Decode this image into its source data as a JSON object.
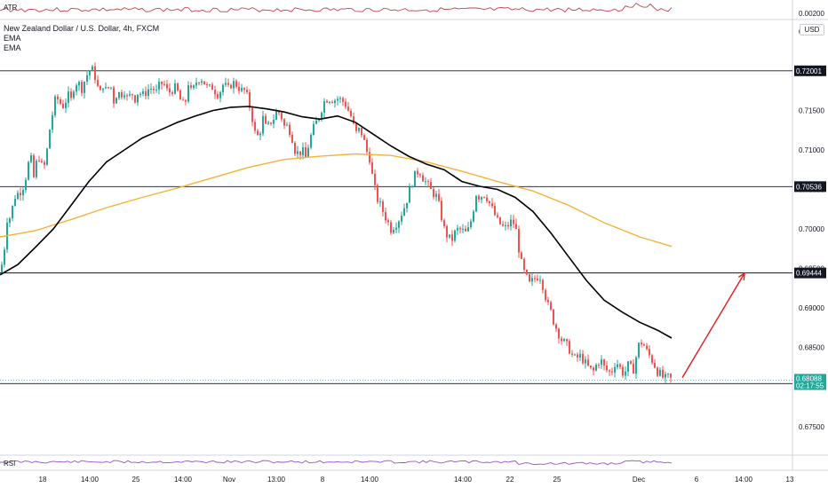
{
  "header": {
    "symbol_line": "New Zealand Dollar / U.S. Dollar, 4h, FXCM",
    "indicators": [
      "EMA",
      "EMA"
    ],
    "currency": "USD"
  },
  "panes": {
    "atr": {
      "label": "ATR",
      "value_label": "0.00200"
    },
    "rsi": {
      "label": "RSI"
    }
  },
  "colors": {
    "up": "#26a69a",
    "down": "#ef5350",
    "ema_fast": "#000000",
    "ema_slow": "#f5b23b",
    "arrow": "#e8191c",
    "atr_line": "#c2424b",
    "rsi_line": "#9b4fc7",
    "current_tag": "#26a69a",
    "level_tag": "#131722"
  },
  "chart_data": {
    "type": "candlestick",
    "title": "New Zealand Dollar / U.S. Dollar, 4h, FXCM",
    "ylim": [
      0.6715,
      0.7265
    ],
    "y_ticks": [
      "0.72500",
      "0.72000",
      "0.71500",
      "0.71000",
      "0.70500",
      "0.70000",
      "0.69500",
      "0.69000",
      "0.68500",
      "0.68000",
      "0.67500"
    ],
    "x_ticks": [
      "18",
      "14:00",
      "25",
      "14:00",
      "Nov",
      "13:00",
      "8",
      "14:00",
      "14:00",
      "22",
      "25",
      "Dec",
      "6",
      "14:00",
      "13"
    ],
    "horizontal_levels": [
      0.72001,
      0.70536,
      0.69444,
      0.68044
    ],
    "level_labels": [
      "0.72001",
      "0.70536",
      "0.69444",
      "0.68044"
    ],
    "current_price": "0.68088",
    "countdown": "02:17:55",
    "close_path": [
      [
        0,
        0.6945
      ],
      [
        4,
        0.6965
      ],
      [
        8,
        0.7013
      ],
      [
        12,
        0.7015
      ],
      [
        16,
        0.704
      ],
      [
        20,
        0.7045
      ],
      [
        25,
        0.705
      ],
      [
        30,
        0.707
      ],
      [
        34,
        0.7095
      ],
      [
        38,
        0.7065
      ],
      [
        43,
        0.7095
      ],
      [
        47,
        0.708
      ],
      [
        51,
        0.708
      ],
      [
        55,
        0.712
      ],
      [
        59,
        0.7145
      ],
      [
        63,
        0.7168
      ],
      [
        67,
        0.716
      ],
      [
        72,
        0.7155
      ],
      [
        76,
        0.717
      ],
      [
        80,
        0.7163
      ],
      [
        84,
        0.7185
      ],
      [
        88,
        0.7185
      ],
      [
        92,
        0.7178
      ],
      [
        96,
        0.719
      ],
      [
        100,
        0.72
      ],
      [
        104,
        0.7201
      ],
      [
        108,
        0.719
      ],
      [
        112,
        0.7168
      ],
      [
        116,
        0.7183
      ],
      [
        120,
        0.7173
      ],
      [
        124,
        0.7185
      ],
      [
        128,
        0.7162
      ],
      [
        132,
        0.7173
      ],
      [
        136,
        0.717
      ],
      [
        140,
        0.7175
      ],
      [
        144,
        0.7163
      ],
      [
        148,
        0.7173
      ],
      [
        152,
        0.7165
      ],
      [
        156,
        0.7175
      ],
      [
        160,
        0.7168
      ],
      [
        164,
        0.7173
      ],
      [
        168,
        0.7178
      ],
      [
        172,
        0.7178
      ],
      [
        176,
        0.7173
      ],
      [
        180,
        0.7183
      ],
      [
        184,
        0.7185
      ],
      [
        188,
        0.7175
      ],
      [
        192,
        0.7173
      ],
      [
        196,
        0.718
      ],
      [
        200,
        0.7173
      ],
      [
        204,
        0.716
      ],
      [
        208,
        0.7155
      ],
      [
        212,
        0.7185
      ],
      [
        216,
        0.717
      ],
      [
        220,
        0.7185
      ],
      [
        224,
        0.719
      ],
      [
        228,
        0.719
      ],
      [
        232,
        0.718
      ],
      [
        236,
        0.7178
      ],
      [
        240,
        0.718
      ],
      [
        244,
        0.717
      ],
      [
        248,
        0.7175
      ],
      [
        252,
        0.7185
      ],
      [
        256,
        0.7175
      ],
      [
        260,
        0.7183
      ],
      [
        264,
        0.7185
      ],
      [
        268,
        0.718
      ],
      [
        272,
        0.7175
      ],
      [
        276,
        0.7175
      ],
      [
        280,
        0.716
      ],
      [
        284,
        0.714
      ],
      [
        288,
        0.7115
      ],
      [
        292,
        0.712
      ],
      [
        296,
        0.714
      ],
      [
        300,
        0.7125
      ],
      [
        304,
        0.7135
      ],
      [
        308,
        0.714
      ],
      [
        312,
        0.715
      ],
      [
        316,
        0.7145
      ],
      [
        320,
        0.713
      ],
      [
        324,
        0.713
      ],
      [
        328,
        0.712
      ],
      [
        332,
        0.71
      ],
      [
        336,
        0.7095
      ],
      [
        340,
        0.71
      ],
      [
        344,
        0.709
      ],
      [
        348,
        0.711
      ],
      [
        352,
        0.7125
      ],
      [
        356,
        0.7135
      ],
      [
        360,
        0.7145
      ],
      [
        364,
        0.716
      ],
      [
        368,
        0.7165
      ],
      [
        372,
        0.7165
      ],
      [
        376,
        0.7163
      ],
      [
        380,
        0.7165
      ],
      [
        384,
        0.7163
      ],
      [
        388,
        0.716
      ],
      [
        392,
        0.715
      ],
      [
        396,
        0.714
      ],
      [
        400,
        0.712
      ],
      [
        404,
        0.7125
      ],
      [
        408,
        0.712
      ],
      [
        412,
        0.71
      ],
      [
        416,
        0.709
      ],
      [
        420,
        0.706
      ],
      [
        424,
        0.704
      ],
      [
        428,
        0.703
      ],
      [
        432,
        0.702
      ],
      [
        436,
        0.701
      ],
      [
        440,
        0.7
      ],
      [
        444,
        0.7005
      ],
      [
        448,
        0.701
      ],
      [
        452,
        0.702
      ],
      [
        456,
        0.703
      ],
      [
        460,
        0.7045
      ],
      [
        464,
        0.706
      ],
      [
        468,
        0.707
      ],
      [
        472,
        0.7075
      ],
      [
        476,
        0.7065
      ],
      [
        480,
        0.7058
      ],
      [
        484,
        0.705
      ],
      [
        488,
        0.7045
      ],
      [
        492,
        0.704
      ],
      [
        496,
        0.702
      ],
      [
        500,
        0.7
      ],
      [
        504,
        0.699
      ],
      [
        508,
        0.6985
      ],
      [
        512,
        0.6995
      ],
      [
        516,
        0.7
      ],
      [
        520,
        0.6998
      ],
      [
        524,
        0.6995
      ],
      [
        528,
        0.7
      ],
      [
        532,
        0.702
      ],
      [
        536,
        0.7045
      ],
      [
        540,
        0.704
      ],
      [
        544,
        0.7045
      ],
      [
        548,
        0.704
      ],
      [
        552,
        0.703
      ],
      [
        556,
        0.702
      ],
      [
        560,
        0.701
      ],
      [
        564,
        0.7005
      ],
      [
        568,
        0.7
      ],
      [
        572,
        0.7005
      ],
      [
        576,
        0.701
      ],
      [
        580,
        0.7005
      ],
      [
        584,
        0.6975
      ],
      [
        588,
        0.695
      ],
      [
        592,
        0.694
      ],
      [
        596,
        0.693
      ],
      [
        600,
        0.6935
      ],
      [
        604,
        0.694
      ],
      [
        608,
        0.694
      ],
      [
        612,
        0.6925
      ],
      [
        616,
        0.6905
      ],
      [
        620,
        0.6895
      ],
      [
        624,
        0.688
      ],
      [
        628,
        0.687
      ],
      [
        632,
        0.686
      ],
      [
        636,
        0.6855
      ],
      [
        640,
        0.685
      ],
      [
        644,
        0.684
      ],
      [
        648,
        0.6835
      ],
      [
        652,
        0.684
      ],
      [
        656,
        0.6835
      ],
      [
        660,
        0.6828
      ],
      [
        664,
        0.6822
      ],
      [
        668,
        0.682
      ],
      [
        672,
        0.683
      ],
      [
        676,
        0.6835
      ],
      [
        680,
        0.6825
      ],
      [
        684,
        0.682
      ],
      [
        688,
        0.6818
      ],
      [
        692,
        0.683
      ],
      [
        696,
        0.683
      ],
      [
        700,
        0.6818
      ],
      [
        704,
        0.682
      ],
      [
        708,
        0.683
      ],
      [
        712,
        0.6818
      ],
      [
        716,
        0.6838
      ],
      [
        720,
        0.6858
      ],
      [
        724,
        0.6855
      ],
      [
        728,
        0.6845
      ],
      [
        732,
        0.6838
      ],
      [
        736,
        0.683
      ],
      [
        740,
        0.682
      ],
      [
        744,
        0.6815
      ],
      [
        748,
        0.681
      ],
      [
        752,
        0.6812
      ],
      [
        756,
        0.6809
      ]
    ],
    "ema_fast": [
      [
        0,
        0.6942
      ],
      [
        20,
        0.6955
      ],
      [
        40,
        0.6977
      ],
      [
        60,
        0.7
      ],
      [
        80,
        0.703
      ],
      [
        100,
        0.706
      ],
      [
        120,
        0.7085
      ],
      [
        140,
        0.71
      ],
      [
        160,
        0.7115
      ],
      [
        180,
        0.7125
      ],
      [
        200,
        0.7135
      ],
      [
        220,
        0.7143
      ],
      [
        240,
        0.715
      ],
      [
        260,
        0.7154
      ],
      [
        280,
        0.7155
      ],
      [
        300,
        0.7152
      ],
      [
        320,
        0.7148
      ],
      [
        340,
        0.7142
      ],
      [
        360,
        0.7139
      ],
      [
        380,
        0.7143
      ],
      [
        400,
        0.7135
      ],
      [
        420,
        0.712
      ],
      [
        440,
        0.7105
      ],
      [
        460,
        0.7092
      ],
      [
        480,
        0.7082
      ],
      [
        500,
        0.7075
      ],
      [
        520,
        0.706
      ],
      [
        540,
        0.7054
      ],
      [
        560,
        0.705
      ],
      [
        580,
        0.704
      ],
      [
        600,
        0.7022
      ],
      [
        620,
        0.6995
      ],
      [
        640,
        0.6965
      ],
      [
        660,
        0.6935
      ],
      [
        680,
        0.691
      ],
      [
        700,
        0.6895
      ],
      [
        720,
        0.6882
      ],
      [
        740,
        0.6872
      ],
      [
        756,
        0.6862
      ]
    ],
    "ema_slow": [
      [
        0,
        0.699
      ],
      [
        40,
        0.6998
      ],
      [
        80,
        0.7012
      ],
      [
        120,
        0.7027
      ],
      [
        160,
        0.704
      ],
      [
        200,
        0.7052
      ],
      [
        240,
        0.7065
      ],
      [
        280,
        0.7078
      ],
      [
        320,
        0.7088
      ],
      [
        360,
        0.7092
      ],
      [
        400,
        0.7095
      ],
      [
        440,
        0.7093
      ],
      [
        480,
        0.7085
      ],
      [
        520,
        0.7073
      ],
      [
        560,
        0.706
      ],
      [
        600,
        0.7048
      ],
      [
        640,
        0.703
      ],
      [
        680,
        0.7008
      ],
      [
        720,
        0.699
      ],
      [
        756,
        0.6978
      ]
    ],
    "projection_arrow": {
      "from": [
        768,
        0.6812
      ],
      "to": [
        838,
        0.6944
      ]
    }
  }
}
